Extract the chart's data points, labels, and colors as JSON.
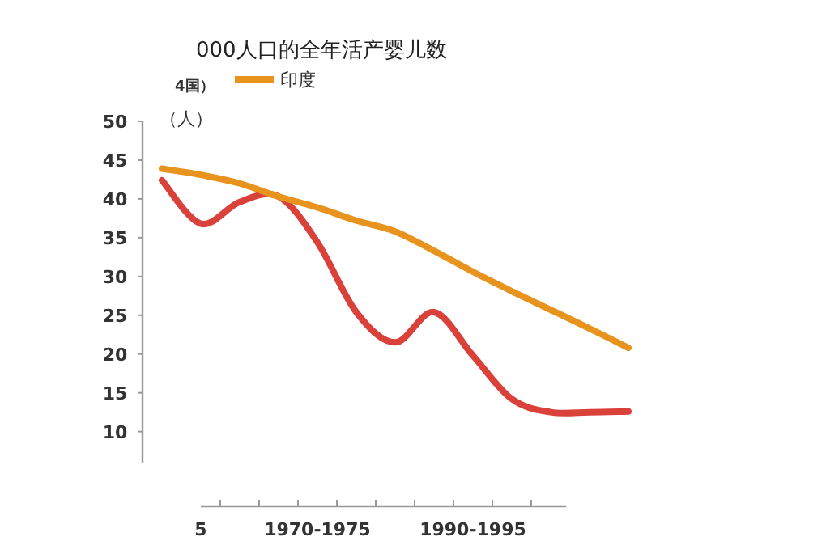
{
  "chart_data": {
    "type": "line",
    "title": "000人口的全年活产婴儿数",
    "ylabel": "（人）",
    "annotations": [
      "4国）"
    ],
    "categories": [
      null,
      "5",
      null,
      null,
      "1970-1975",
      null,
      null,
      null,
      "1990-1995",
      null,
      null,
      null,
      null
    ],
    "series": [
      {
        "color": "#d9413a",
        "values": [
          42.4,
          36.8,
          39.6,
          40.3,
          34.4,
          25.4,
          21.5,
          25.4,
          19.8,
          14.2,
          12.5,
          12.5,
          12.6
        ]
      },
      {
        "name": "印度",
        "color": "#e8931e",
        "values": [
          43.9,
          43.1,
          42.0,
          40.3,
          38.9,
          37.2,
          35.8,
          33.3,
          30.6,
          28.1,
          25.7,
          23.3,
          20.8
        ]
      }
    ],
    "ylim": [
      6,
      50
    ],
    "yticks": [
      10,
      15,
      20,
      25,
      30,
      35,
      40,
      45,
      50
    ],
    "legend": "top left"
  }
}
